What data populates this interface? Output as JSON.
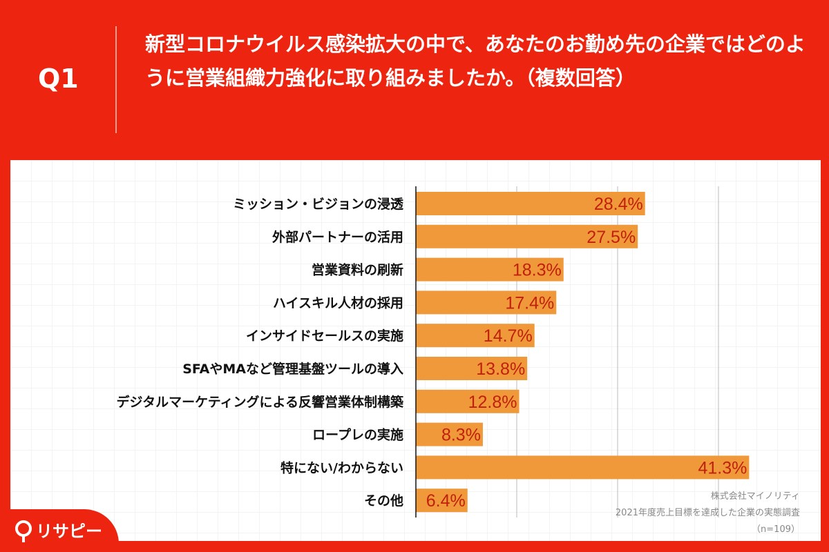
{
  "header": {
    "question_no": "Q1",
    "title": "新型コロナウイルス感染拡大の中で、あなたのお勤め先の企業ではどのように営業組織力強化に取り組みましたか。（複数回答）"
  },
  "chart_data": {
    "type": "bar",
    "orientation": "horizontal",
    "title": "",
    "xlabel": "",
    "ylabel": "",
    "xlim": [
      0,
      50
    ],
    "grid": true,
    "categories": [
      "ミッション・ビジョンの浸透",
      "外部パートナーの活用",
      "営業資料の刷新",
      "ハイスキル人材の採用",
      "インサイドセールスの実施",
      "SFAやMAなど管理基盤ツールの導入",
      "デジタルマーケティングによる反響営業体制構築",
      "ロープレの実施",
      "特にない/わからない",
      "その他"
    ],
    "values": [
      28.4,
      27.5,
      18.3,
      17.4,
      14.7,
      13.8,
      12.8,
      8.3,
      41.3,
      6.4
    ],
    "data_labels": [
      "28.4%",
      "27.5%",
      "18.3%",
      "17.4%",
      "14.7%",
      "13.8%",
      "12.8%",
      "8.3%",
      "41.3%",
      "6.4%"
    ],
    "bar_color": "#F0993A",
    "label_color": "#C0200C"
  },
  "source": {
    "line1": "株式会社マイノリティ",
    "line2": "2021年度売上目標を達成した企業の実態調査",
    "line3": "（n=109）"
  },
  "logo": {
    "text": "リサピー"
  },
  "colors": {
    "background": "#EC2410"
  }
}
